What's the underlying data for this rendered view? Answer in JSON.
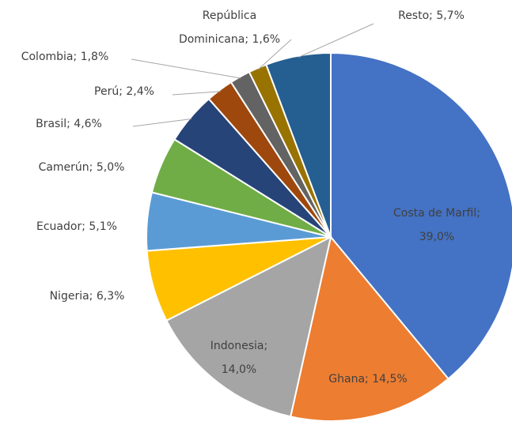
{
  "chart_data": {
    "type": "pie",
    "categories": [
      "Costa de Marfil",
      "Ghana",
      "Indonesia",
      "Nigeria",
      "Ecuador",
      "Camerún",
      "Brasil",
      "Perú",
      "Colombia",
      "República Dominicana",
      "Resto"
    ],
    "values": [
      39.0,
      14.5,
      14.0,
      6.3,
      5.1,
      5.0,
      4.6,
      2.4,
      1.8,
      1.6,
      5.7
    ],
    "value_labels": [
      "39,0%",
      "14,5%",
      "14,0%",
      "6,3%",
      "5,1%",
      "5,0%",
      "4,6%",
      "2,4%",
      "1,8%",
      "1,6%",
      "5,7%"
    ],
    "colors": [
      "#4472c4",
      "#ed7d31",
      "#a5a5a5",
      "#ffc000",
      "#5b9bd5",
      "#70ad47",
      "#264478",
      "#9e480e",
      "#636363",
      "#997300",
      "#255e91"
    ]
  }
}
